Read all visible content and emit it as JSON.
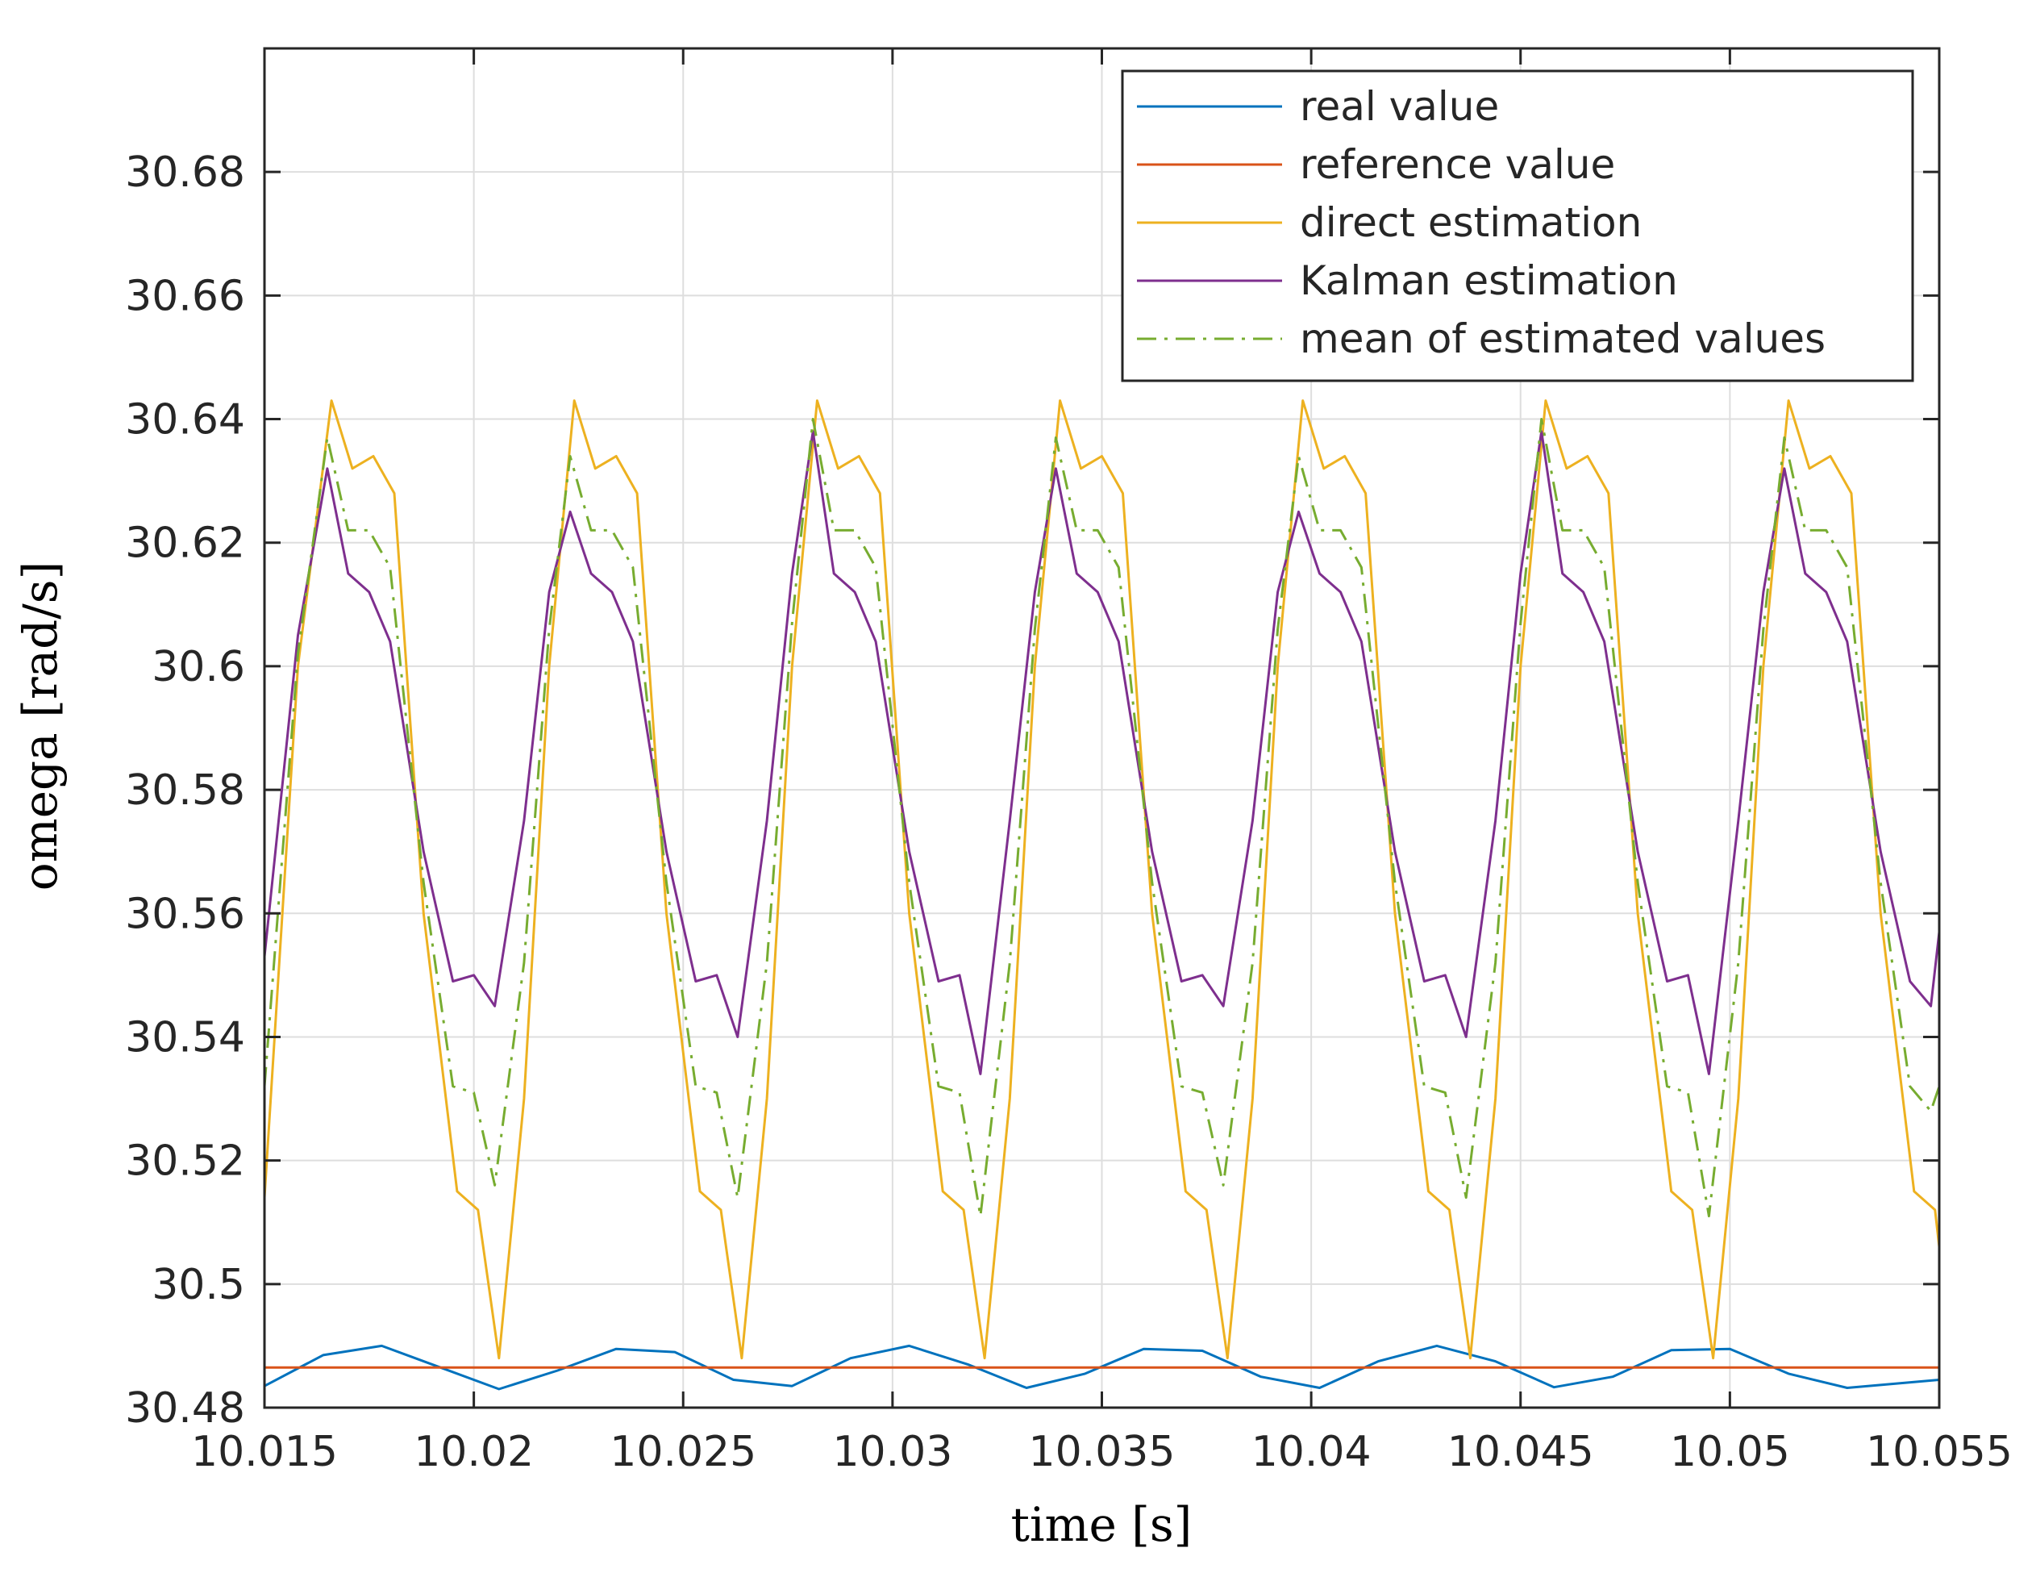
{
  "chart_data": {
    "type": "line",
    "title": "",
    "xlabel": "time [s]",
    "ylabel": "omega  [rad/s]",
    "xlim": [
      10.015,
      10.055
    ],
    "ylim": [
      30.48,
      30.7
    ],
    "grid": true,
    "legend_position": "top-right",
    "x_ticks": [
      10.015,
      10.02,
      10.025,
      10.03,
      10.035,
      10.04,
      10.045,
      10.05,
      10.055
    ],
    "x_tick_labels": [
      "10.015",
      "10.02",
      "10.025",
      "10.03",
      "10.035",
      "10.04",
      "10.045",
      "10.05",
      "10.055"
    ],
    "y_ticks": [
      30.48,
      30.5,
      30.52,
      30.54,
      30.56,
      30.58,
      30.6,
      30.62,
      30.64,
      30.66,
      30.68
    ],
    "y_tick_labels": [
      "30.48",
      "30.5",
      "30.52",
      "30.54",
      "30.56",
      "30.58",
      "30.6",
      "30.62",
      "30.64",
      "30.66",
      "30.68"
    ],
    "series": [
      {
        "name": "real value",
        "color": "#0072BD",
        "dash": "solid",
        "x": [
          10.015,
          10.0164,
          10.0178,
          10.0192,
          10.0206,
          10.022,
          10.0234,
          10.0248,
          10.0262,
          10.0276,
          10.029,
          10.0304,
          10.0318,
          10.0332,
          10.0346,
          10.036,
          10.0374,
          10.0388,
          10.0402,
          10.0416,
          10.043,
          10.0444,
          10.0458,
          10.0472,
          10.0486,
          10.05,
          10.0514,
          10.0528,
          10.055
        ],
        "y": [
          30.4835,
          30.4885,
          30.49,
          30.4865,
          30.483,
          30.486,
          30.4895,
          30.489,
          30.4845,
          30.4835,
          30.488,
          30.49,
          30.487,
          30.4832,
          30.4855,
          30.4895,
          30.4892,
          30.485,
          30.4832,
          30.4875,
          30.49,
          30.4875,
          30.4833,
          30.485,
          30.4893,
          30.4895,
          30.4855,
          30.4832,
          30.4845
        ]
      },
      {
        "name": "reference value",
        "color": "#D95319",
        "dash": "solid",
        "x": [
          10.015,
          10.055
        ],
        "y": [
          30.4865,
          30.4865
        ]
      },
      {
        "name": "direct estimation",
        "color": "#EDB120",
        "dash": "solid",
        "x": [
          10.015,
          10.0158,
          10.0166,
          10.0171,
          10.0176,
          10.0181,
          10.0188,
          10.0196,
          10.0201,
          10.0206,
          10.0212,
          10.0218,
          10.0224,
          10.0229,
          10.0234,
          10.0239,
          10.0246,
          10.0254,
          10.0259,
          10.0264,
          10.027,
          10.0276,
          10.0282,
          10.0287,
          10.0292,
          10.0297,
          10.0304,
          10.0312,
          10.0317,
          10.0322,
          10.0328,
          10.0334,
          10.034,
          10.0345,
          10.035,
          10.0355,
          10.0362,
          10.037,
          10.0375,
          10.038,
          10.0386,
          10.0392,
          10.0398,
          10.0403,
          10.0408,
          10.0413,
          10.042,
          10.0428,
          10.0433,
          10.0438,
          10.0444,
          10.045,
          10.0456,
          10.0461,
          10.0466,
          10.0471,
          10.0478,
          10.0486,
          10.0491,
          10.0496,
          10.0502,
          10.0508,
          10.0514,
          10.0519,
          10.0524,
          10.0529,
          10.0536,
          10.0544,
          10.0549,
          10.055
        ],
        "y": [
          30.514,
          30.6,
          30.643,
          30.632,
          30.634,
          30.628,
          30.56,
          30.515,
          30.512,
          30.488,
          30.53,
          30.6,
          30.643,
          30.632,
          30.634,
          30.628,
          30.56,
          30.515,
          30.512,
          30.488,
          30.53,
          30.6,
          30.643,
          30.632,
          30.634,
          30.628,
          30.56,
          30.515,
          30.512,
          30.488,
          30.53,
          30.6,
          30.643,
          30.632,
          30.634,
          30.628,
          30.56,
          30.515,
          30.512,
          30.488,
          30.53,
          30.6,
          30.643,
          30.632,
          30.634,
          30.628,
          30.56,
          30.515,
          30.512,
          30.488,
          30.53,
          30.6,
          30.643,
          30.632,
          30.634,
          30.628,
          30.56,
          30.515,
          30.512,
          30.488,
          30.53,
          30.6,
          30.643,
          30.632,
          30.634,
          30.628,
          30.56,
          30.515,
          30.512,
          30.506
        ]
      },
      {
        "name": "Kalman estimation",
        "color": "#7E2F8E",
        "dash": "solid",
        "x": [
          10.015,
          10.0158,
          10.0165,
          10.017,
          10.0175,
          10.018,
          10.0188,
          10.0195,
          10.02,
          10.0205,
          10.0212,
          10.0218,
          10.0223,
          10.0228,
          10.0233,
          10.0238,
          10.0246,
          10.0253,
          10.0258,
          10.0263,
          10.027,
          10.0276,
          10.0281,
          10.0286,
          10.0291,
          10.0296,
          10.0304,
          10.0311,
          10.0316,
          10.0321,
          10.0328,
          10.0334,
          10.0339,
          10.0344,
          10.0349,
          10.0354,
          10.0362,
          10.0369,
          10.0374,
          10.0379,
          10.0386,
          10.0392,
          10.0397,
          10.0402,
          10.0407,
          10.0412,
          10.042,
          10.0427,
          10.0432,
          10.0437,
          10.0444,
          10.045,
          10.0455,
          10.046,
          10.0465,
          10.047,
          10.0478,
          10.0485,
          10.049,
          10.0495,
          10.0502,
          10.0508,
          10.0513,
          10.0518,
          10.0523,
          10.0528,
          10.0536,
          10.0543,
          10.0548,
          10.055
        ],
        "y": [
          30.553,
          30.605,
          30.632,
          30.615,
          30.612,
          30.604,
          30.57,
          30.549,
          30.55,
          30.545,
          30.575,
          30.612,
          30.625,
          30.615,
          30.612,
          30.604,
          30.57,
          30.549,
          30.55,
          30.54,
          30.575,
          30.615,
          30.638,
          30.615,
          30.612,
          30.604,
          30.57,
          30.549,
          30.55,
          30.534,
          30.575,
          30.612,
          30.632,
          30.615,
          30.612,
          30.604,
          30.57,
          30.549,
          30.55,
          30.545,
          30.575,
          30.612,
          30.625,
          30.615,
          30.612,
          30.604,
          30.57,
          30.549,
          30.55,
          30.54,
          30.575,
          30.615,
          30.638,
          30.615,
          30.612,
          30.604,
          30.57,
          30.549,
          30.55,
          30.534,
          30.575,
          30.612,
          30.632,
          30.615,
          30.612,
          30.604,
          30.57,
          30.549,
          30.545,
          30.557
        ]
      },
      {
        "name": "mean of estimated values",
        "color": "#77AC30",
        "dash": "dashdot",
        "x": [
          10.015,
          10.0158,
          10.0165,
          10.017,
          10.0175,
          10.018,
          10.0188,
          10.0195,
          10.02,
          10.0205,
          10.0212,
          10.0218,
          10.0223,
          10.0228,
          10.0233,
          10.0238,
          10.0246,
          10.0253,
          10.0258,
          10.0263,
          10.027,
          10.0276,
          10.0281,
          10.0286,
          10.0291,
          10.0296,
          10.0304,
          10.0311,
          10.0316,
          10.0321,
          10.0328,
          10.0334,
          10.0339,
          10.0344,
          10.0349,
          10.0354,
          10.0362,
          10.0369,
          10.0374,
          10.0379,
          10.0386,
          10.0392,
          10.0397,
          10.0402,
          10.0407,
          10.0412,
          10.042,
          10.0427,
          10.0432,
          10.0437,
          10.0444,
          10.045,
          10.0455,
          10.046,
          10.0465,
          10.047,
          10.0478,
          10.0485,
          10.049,
          10.0495,
          10.0502,
          10.0508,
          10.0513,
          10.0518,
          10.0523,
          10.0528,
          10.0536,
          10.0543,
          10.0548,
          10.055
        ],
        "y": [
          30.532,
          30.602,
          30.637,
          30.622,
          30.622,
          30.616,
          30.565,
          30.532,
          30.531,
          30.516,
          30.552,
          30.606,
          30.634,
          30.622,
          30.622,
          30.616,
          30.565,
          30.532,
          30.531,
          30.514,
          30.552,
          30.607,
          30.64,
          30.622,
          30.622,
          30.616,
          30.565,
          30.532,
          30.531,
          30.511,
          30.552,
          30.606,
          30.637,
          30.622,
          30.622,
          30.616,
          30.565,
          30.532,
          30.531,
          30.516,
          30.552,
          30.606,
          30.634,
          30.622,
          30.622,
          30.616,
          30.565,
          30.532,
          30.531,
          30.514,
          30.552,
          30.607,
          30.64,
          30.622,
          30.622,
          30.616,
          30.565,
          30.532,
          30.531,
          30.511,
          30.552,
          30.606,
          30.637,
          30.622,
          30.622,
          30.616,
          30.565,
          30.532,
          30.528,
          30.532
        ]
      }
    ]
  }
}
